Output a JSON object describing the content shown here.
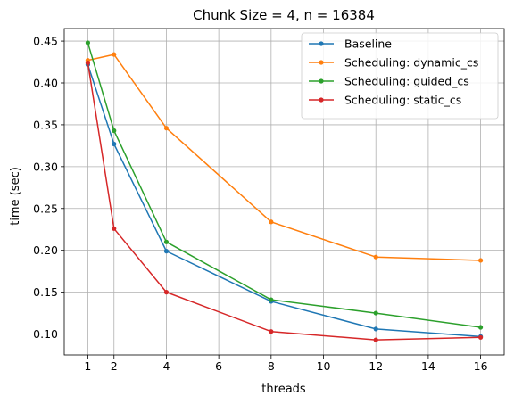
{
  "chart_data": {
    "type": "line",
    "title": "Chunk Size = 4, n = 16384",
    "xlabel": "threads",
    "ylabel": "time (sec)",
    "xlim": [
      0.1,
      16.9
    ],
    "ylim": [
      0.075,
      0.465
    ],
    "x": [
      1,
      2,
      4,
      8,
      12,
      16
    ],
    "xticks": [
      1,
      2,
      4,
      6,
      8,
      10,
      12,
      14,
      16
    ],
    "yticks": [
      0.1,
      0.15,
      0.2,
      0.25,
      0.3,
      0.35,
      0.4,
      0.45
    ],
    "grid": true,
    "legend_position": "top-right",
    "series": [
      {
        "name": "Baseline",
        "color": "#1f77b4",
        "values": [
          0.422,
          0.327,
          0.199,
          0.139,
          0.106,
          0.097
        ]
      },
      {
        "name": "Scheduling: dynamic_cs",
        "color": "#ff7f0e",
        "values": [
          0.427,
          0.434,
          0.346,
          0.234,
          0.192,
          0.188
        ]
      },
      {
        "name": "Scheduling: guided_cs",
        "color": "#2ca02c",
        "values": [
          0.448,
          0.343,
          0.21,
          0.141,
          0.125,
          0.108
        ]
      },
      {
        "name": "Scheduling: static_cs",
        "color": "#d62728",
        "values": [
          0.424,
          0.226,
          0.15,
          0.103,
          0.093,
          0.096
        ]
      }
    ]
  }
}
